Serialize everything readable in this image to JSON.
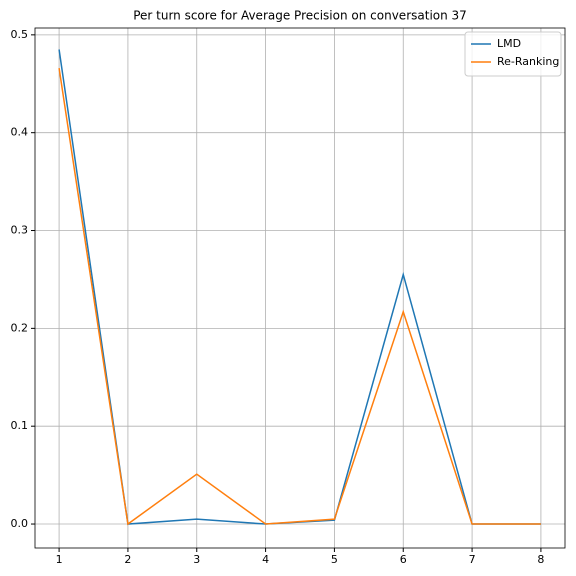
{
  "chart_data": {
    "type": "line",
    "title": "Per turn score for Average Precision on conversation 37",
    "x": [
      1,
      2,
      3,
      4,
      5,
      6,
      7,
      8
    ],
    "series": [
      {
        "name": "LMD",
        "color": "#1f77b4",
        "values": [
          0.485,
          0,
          0.005,
          0,
          0.004,
          0.255,
          0,
          0
        ]
      },
      {
        "name": "Re-Ranking",
        "color": "#ff7f0e",
        "values": [
          0.466,
          0,
          0.051,
          0,
          0.005,
          0.217,
          0,
          0
        ]
      }
    ],
    "xlim": [
      0.65,
      8.35
    ],
    "xticks": [
      1,
      2,
      3,
      4,
      5,
      6,
      7,
      8
    ],
    "ylim": [
      -0.0245,
      0.507
    ],
    "yticks": [
      {
        "value": 0,
        "label": "0.0"
      },
      0.1,
      0.2,
      0.3,
      0.4,
      0.5
    ],
    "grid": true,
    "legend": "upper-right"
  }
}
